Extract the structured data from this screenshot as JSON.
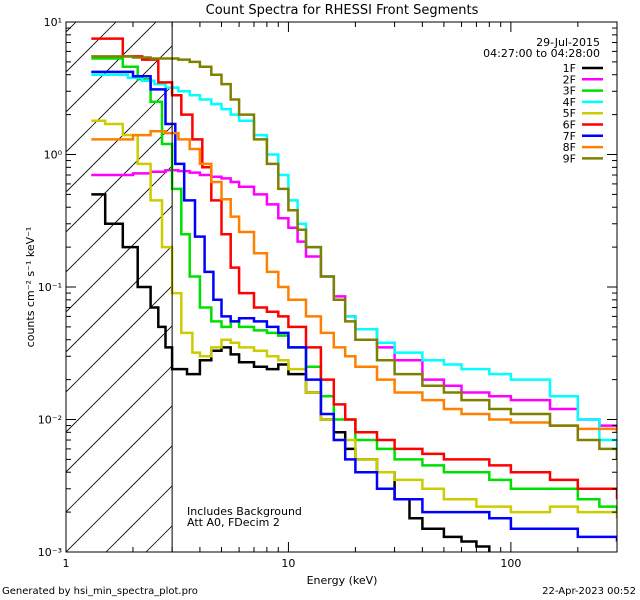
{
  "chart_data": {
    "type": "line",
    "title": "Count Spectra for RHESSI Front Segments",
    "xlabel": "Energy (keV)",
    "ylabel": "counts cm⁻² s⁻¹ keV⁻¹",
    "xscale": "log",
    "yscale": "log",
    "xlim": [
      1,
      300
    ],
    "ylim": [
      0.001,
      10
    ],
    "x_ticks": [
      {
        "value": 1,
        "label": "1"
      },
      {
        "value": 10,
        "label": "10"
      },
      {
        "value": 100,
        "label": "100"
      }
    ],
    "y_ticks": [
      {
        "value": 10,
        "label": "10¹"
      },
      {
        "value": 1,
        "label": "10⁰"
      },
      {
        "value": 0.1,
        "label": "10⁻¹"
      },
      {
        "value": 0.01,
        "label": "10⁻²"
      },
      {
        "value": 0.001,
        "label": "10⁻³"
      }
    ],
    "date": "29-Jul-2015",
    "time_range": "04:27:00 to 04:28:00",
    "annotations": [
      "Includes Background",
      "Att A0, FDecim 2"
    ],
    "shaded_region_max_energy": 3,
    "series": [
      {
        "name": "1F",
        "color": "#000000",
        "points": [
          [
            1.3,
            0.5
          ],
          [
            1.5,
            0.3
          ],
          [
            1.8,
            0.2
          ],
          [
            2.1,
            0.1
          ],
          [
            2.4,
            0.07
          ],
          [
            2.6,
            0.05
          ],
          [
            2.8,
            0.035
          ],
          [
            3,
            0.024
          ],
          [
            3.5,
            0.022
          ],
          [
            4,
            0.028
          ],
          [
            4.5,
            0.033
          ],
          [
            5,
            0.035
          ],
          [
            5.5,
            0.031
          ],
          [
            6,
            0.027
          ],
          [
            7,
            0.025
          ],
          [
            8,
            0.024
          ],
          [
            9,
            0.026
          ],
          [
            10,
            0.022
          ],
          [
            12,
            0.016
          ],
          [
            14,
            0.01
          ],
          [
            16,
            0.008
          ],
          [
            18,
            0.006
          ],
          [
            20,
            0.005
          ],
          [
            25,
            0.004
          ],
          [
            30,
            0.0025
          ],
          [
            35,
            0.0018
          ],
          [
            40,
            0.0015
          ],
          [
            50,
            0.0013
          ],
          [
            60,
            0.0012
          ],
          [
            70,
            0.0011
          ],
          [
            80,
            0.001
          ]
        ]
      },
      {
        "name": "2F",
        "color": "#ff00ff",
        "points": [
          [
            1.3,
            0.7
          ],
          [
            1.6,
            0.7
          ],
          [
            2,
            0.72
          ],
          [
            2.4,
            0.74
          ],
          [
            2.8,
            0.76
          ],
          [
            3.2,
            0.75
          ],
          [
            3.6,
            0.73
          ],
          [
            4,
            0.7
          ],
          [
            4.5,
            0.68
          ],
          [
            5,
            0.66
          ],
          [
            5.5,
            0.62
          ],
          [
            6,
            0.57
          ],
          [
            7,
            0.5
          ],
          [
            8,
            0.42
          ],
          [
            9,
            0.33
          ],
          [
            10,
            0.28
          ],
          [
            11,
            0.22
          ],
          [
            12,
            0.17
          ],
          [
            14,
            0.12
          ],
          [
            16,
            0.085
          ],
          [
            18,
            0.06
          ],
          [
            20,
            0.048
          ],
          [
            25,
            0.035
          ],
          [
            30,
            0.028
          ],
          [
            40,
            0.02
          ],
          [
            50,
            0.018
          ],
          [
            60,
            0.016
          ],
          [
            80,
            0.015
          ],
          [
            100,
            0.014
          ],
          [
            150,
            0.012
          ],
          [
            200,
            0.01
          ],
          [
            250,
            0.009
          ],
          [
            300,
            0.008
          ]
        ]
      },
      {
        "name": "3F",
        "color": "#00e000",
        "points": [
          [
            1.3,
            5.3
          ],
          [
            1.5,
            5.3
          ],
          [
            1.8,
            4.6
          ],
          [
            2.1,
            3.7
          ],
          [
            2.4,
            2.5
          ],
          [
            2.7,
            1.2
          ],
          [
            3,
            0.55
          ],
          [
            3.3,
            0.25
          ],
          [
            3.6,
            0.12
          ],
          [
            4,
            0.07
          ],
          [
            4.5,
            0.055
          ],
          [
            5,
            0.05
          ],
          [
            5.5,
            0.055
          ],
          [
            6,
            0.05
          ],
          [
            7,
            0.047
          ],
          [
            8,
            0.045
          ],
          [
            9,
            0.043
          ],
          [
            10,
            0.035
          ],
          [
            12,
            0.025
          ],
          [
            14,
            0.015
          ],
          [
            16,
            0.01
          ],
          [
            20,
            0.007
          ],
          [
            25,
            0.006
          ],
          [
            30,
            0.005
          ],
          [
            40,
            0.0045
          ],
          [
            50,
            0.004
          ],
          [
            60,
            0.004
          ],
          [
            80,
            0.0035
          ],
          [
            100,
            0.003
          ],
          [
            150,
            0.003
          ],
          [
            200,
            0.0025
          ],
          [
            250,
            0.0022
          ],
          [
            300,
            0.002
          ]
        ]
      },
      {
        "name": "4F",
        "color": "#00ffff",
        "points": [
          [
            1.3,
            4
          ],
          [
            1.6,
            4
          ],
          [
            1.9,
            3.8
          ],
          [
            2.2,
            3.6
          ],
          [
            2.5,
            3.4
          ],
          [
            2.8,
            3.2
          ],
          [
            3.2,
            3
          ],
          [
            3.6,
            2.8
          ],
          [
            4,
            2.6
          ],
          [
            4.5,
            2.4
          ],
          [
            5,
            2.2
          ],
          [
            5.5,
            2
          ],
          [
            6,
            1.8
          ],
          [
            7,
            1.4
          ],
          [
            8,
            1.0
          ],
          [
            9,
            0.7
          ],
          [
            10,
            0.45
          ],
          [
            11,
            0.3
          ],
          [
            12,
            0.2
          ],
          [
            14,
            0.12
          ],
          [
            16,
            0.08
          ],
          [
            18,
            0.06
          ],
          [
            20,
            0.048
          ],
          [
            25,
            0.038
          ],
          [
            30,
            0.032
          ],
          [
            40,
            0.028
          ],
          [
            50,
            0.026
          ],
          [
            60,
            0.024
          ],
          [
            80,
            0.022
          ],
          [
            100,
            0.02
          ],
          [
            150,
            0.015
          ],
          [
            200,
            0.01
          ],
          [
            250,
            0.007
          ],
          [
            300,
            0.005
          ]
        ]
      },
      {
        "name": "5F",
        "color": "#cccc00",
        "points": [
          [
            1.3,
            1.8
          ],
          [
            1.5,
            1.7
          ],
          [
            1.8,
            1.4
          ],
          [
            2.1,
            0.85
          ],
          [
            2.4,
            0.45
          ],
          [
            2.7,
            0.2
          ],
          [
            3,
            0.09
          ],
          [
            3.3,
            0.045
          ],
          [
            3.7,
            0.032
          ],
          [
            4,
            0.03
          ],
          [
            4.5,
            0.035
          ],
          [
            5,
            0.04
          ],
          [
            5.5,
            0.038
          ],
          [
            6,
            0.035
          ],
          [
            7,
            0.033
          ],
          [
            8,
            0.03
          ],
          [
            9,
            0.028
          ],
          [
            10,
            0.024
          ],
          [
            12,
            0.016
          ],
          [
            14,
            0.01
          ],
          [
            16,
            0.007
          ],
          [
            20,
            0.005
          ],
          [
            25,
            0.004
          ],
          [
            30,
            0.0035
          ],
          [
            40,
            0.003
          ],
          [
            50,
            0.0025
          ],
          [
            70,
            0.0022
          ],
          [
            100,
            0.002
          ],
          [
            150,
            0.0022
          ],
          [
            200,
            0.002
          ],
          [
            300,
            0.0018
          ]
        ]
      },
      {
        "name": "6F",
        "color": "#ff0000",
        "points": [
          [
            1.3,
            7.5
          ],
          [
            1.5,
            7.5
          ],
          [
            1.8,
            5.5
          ],
          [
            2.2,
            5.2
          ],
          [
            2.6,
            3.5
          ],
          [
            3,
            2.8
          ],
          [
            3.3,
            2.0
          ],
          [
            3.7,
            1.3
          ],
          [
            4.1,
            0.8
          ],
          [
            4.5,
            0.45
          ],
          [
            5,
            0.25
          ],
          [
            5.5,
            0.14
          ],
          [
            6,
            0.09
          ],
          [
            7,
            0.07
          ],
          [
            8,
            0.065
          ],
          [
            9,
            0.06
          ],
          [
            10,
            0.05
          ],
          [
            12,
            0.035
          ],
          [
            14,
            0.02
          ],
          [
            16,
            0.013
          ],
          [
            18,
            0.01
          ],
          [
            20,
            0.008
          ],
          [
            25,
            0.007
          ],
          [
            30,
            0.006
          ],
          [
            40,
            0.0055
          ],
          [
            50,
            0.005
          ],
          [
            60,
            0.005
          ],
          [
            80,
            0.0045
          ],
          [
            100,
            0.004
          ],
          [
            150,
            0.0035
          ],
          [
            200,
            0.003
          ],
          [
            300,
            0.0025
          ]
        ]
      },
      {
        "name": "7F",
        "color": "#0000ff",
        "points": [
          [
            1.3,
            4.2
          ],
          [
            1.6,
            4.2
          ],
          [
            2,
            3.9
          ],
          [
            2.4,
            3.1
          ],
          [
            2.8,
            1.7
          ],
          [
            3.1,
            0.85
          ],
          [
            3.4,
            0.45
          ],
          [
            3.8,
            0.24
          ],
          [
            4.2,
            0.13
          ],
          [
            4.6,
            0.08
          ],
          [
            5,
            0.06
          ],
          [
            5.5,
            0.055
          ],
          [
            6,
            0.058
          ],
          [
            7,
            0.055
          ],
          [
            8,
            0.05
          ],
          [
            9,
            0.045
          ],
          [
            10,
            0.035
          ],
          [
            12,
            0.02
          ],
          [
            14,
            0.011
          ],
          [
            16,
            0.007
          ],
          [
            18,
            0.005
          ],
          [
            20,
            0.004
          ],
          [
            25,
            0.003
          ],
          [
            30,
            0.0025
          ],
          [
            40,
            0.002
          ],
          [
            50,
            0.002
          ],
          [
            60,
            0.002
          ],
          [
            80,
            0.0018
          ],
          [
            100,
            0.0015
          ],
          [
            150,
            0.0015
          ],
          [
            200,
            0.0013
          ],
          [
            300,
            0.0012
          ]
        ]
      },
      {
        "name": "8F",
        "color": "#ff8000",
        "points": [
          [
            1.3,
            1.3
          ],
          [
            1.6,
            1.3
          ],
          [
            2,
            1.4
          ],
          [
            2.4,
            1.5
          ],
          [
            2.8,
            1.45
          ],
          [
            3.2,
            1.3
          ],
          [
            3.6,
            1.1
          ],
          [
            4,
            0.85
          ],
          [
            4.5,
            0.62
          ],
          [
            5,
            0.46
          ],
          [
            5.5,
            0.34
          ],
          [
            6,
            0.26
          ],
          [
            7,
            0.18
          ],
          [
            8,
            0.13
          ],
          [
            9,
            0.1
          ],
          [
            10,
            0.08
          ],
          [
            12,
            0.06
          ],
          [
            14,
            0.045
          ],
          [
            16,
            0.035
          ],
          [
            18,
            0.03
          ],
          [
            20,
            0.025
          ],
          [
            25,
            0.02
          ],
          [
            30,
            0.016
          ],
          [
            40,
            0.014
          ],
          [
            50,
            0.012
          ],
          [
            60,
            0.011
          ],
          [
            80,
            0.01
          ],
          [
            100,
            0.0095
          ],
          [
            150,
            0.009
          ],
          [
            200,
            0.0085
          ],
          [
            300,
            0.008
          ]
        ]
      },
      {
        "name": "9F",
        "color": "#808000",
        "points": [
          [
            1.3,
            5.5
          ],
          [
            1.6,
            5.5
          ],
          [
            2,
            5.4
          ],
          [
            2.4,
            5.3
          ],
          [
            2.8,
            5.3
          ],
          [
            3.2,
            5.2
          ],
          [
            3.6,
            5.0
          ],
          [
            4,
            4.6
          ],
          [
            4.5,
            4.0
          ],
          [
            5,
            3.4
          ],
          [
            5.5,
            2.6
          ],
          [
            6,
            2.0
          ],
          [
            7,
            1.3
          ],
          [
            8,
            0.85
          ],
          [
            9,
            0.55
          ],
          [
            10,
            0.38
          ],
          [
            11,
            0.27
          ],
          [
            12,
            0.2
          ],
          [
            14,
            0.12
          ],
          [
            16,
            0.08
          ],
          [
            18,
            0.055
          ],
          [
            20,
            0.04
          ],
          [
            25,
            0.028
          ],
          [
            30,
            0.022
          ],
          [
            40,
            0.018
          ],
          [
            50,
            0.016
          ],
          [
            60,
            0.014
          ],
          [
            80,
            0.012
          ],
          [
            100,
            0.011
          ],
          [
            150,
            0.009
          ],
          [
            200,
            0.007
          ],
          [
            250,
            0.006
          ],
          [
            300,
            0.005
          ]
        ]
      }
    ]
  },
  "footer": {
    "left": "Generated by hsi_min_spectra_plot.pro",
    "right": "22-Apr-2023 00:52"
  }
}
